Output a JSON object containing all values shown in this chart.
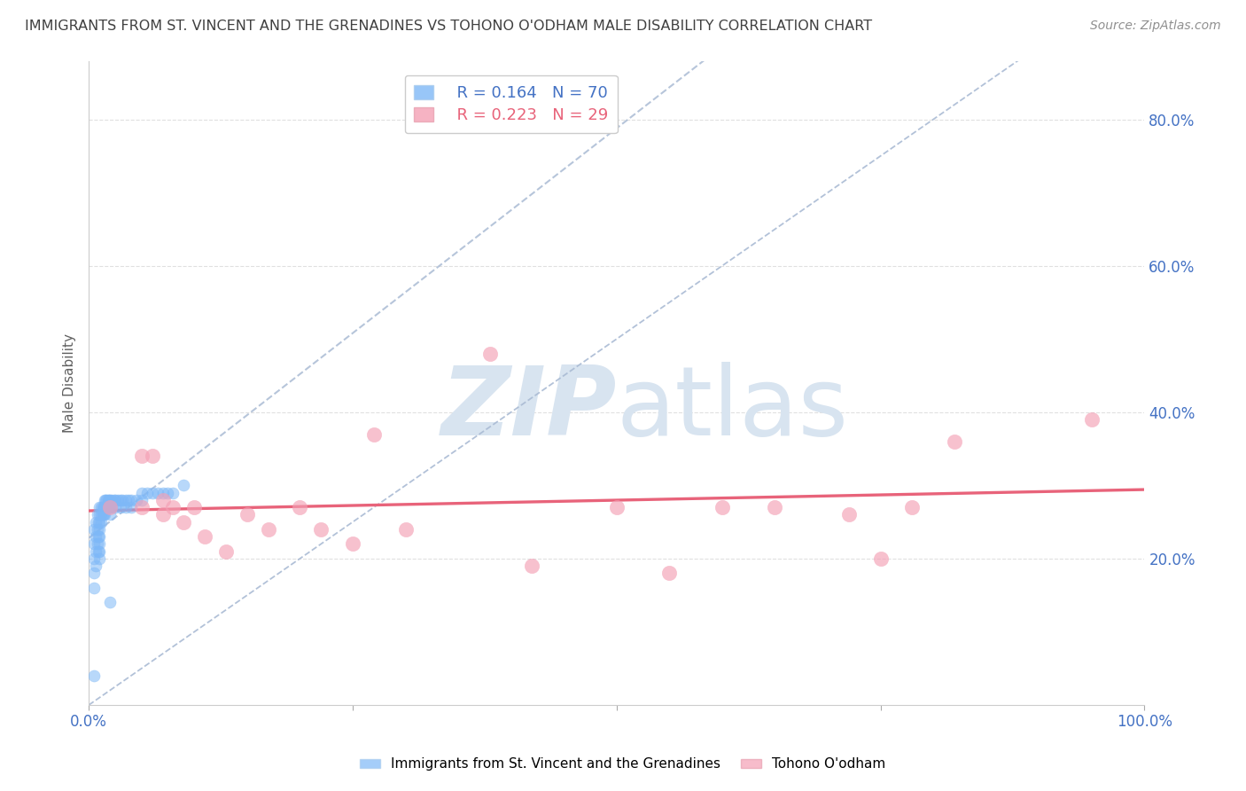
{
  "title": "IMMIGRANTS FROM ST. VINCENT AND THE GRENADINES VS TOHONO O'ODHAM MALE DISABILITY CORRELATION CHART",
  "source": "Source: ZipAtlas.com",
  "ylabel": "Male Disability",
  "legend_blue_label": "Immigrants from St. Vincent and the Grenadines",
  "legend_pink_label": "Tohono O'odham",
  "legend_blue_R": "R = 0.164",
  "legend_blue_N": "N = 70",
  "legend_pink_R": "R = 0.223",
  "legend_pink_N": "N = 29",
  "xlim": [
    0.0,
    1.0
  ],
  "ylim": [
    0.0,
    0.88
  ],
  "ytick_positions": [
    0.2,
    0.4,
    0.6,
    0.8
  ],
  "ytick_labels": [
    "20.0%",
    "40.0%",
    "60.0%",
    "80.0%"
  ],
  "blue_scatter_x": [
    0.005,
    0.005,
    0.005,
    0.005,
    0.005,
    0.007,
    0.007,
    0.007,
    0.007,
    0.008,
    0.008,
    0.008,
    0.009,
    0.009,
    0.009,
    0.01,
    0.01,
    0.01,
    0.01,
    0.01,
    0.01,
    0.01,
    0.01,
    0.012,
    0.012,
    0.012,
    0.013,
    0.013,
    0.014,
    0.014,
    0.015,
    0.015,
    0.015,
    0.016,
    0.016,
    0.017,
    0.017,
    0.018,
    0.018,
    0.019,
    0.019,
    0.02,
    0.02,
    0.02,
    0.022,
    0.022,
    0.024,
    0.025,
    0.025,
    0.028,
    0.03,
    0.03,
    0.032,
    0.035,
    0.035,
    0.038,
    0.04,
    0.04,
    0.045,
    0.05,
    0.05,
    0.055,
    0.06,
    0.065,
    0.07,
    0.075,
    0.08,
    0.09,
    0.02,
    0.005
  ],
  "blue_scatter_y": [
    0.24,
    0.22,
    0.2,
    0.18,
    0.16,
    0.25,
    0.23,
    0.21,
    0.19,
    0.26,
    0.24,
    0.22,
    0.25,
    0.23,
    0.21,
    0.27,
    0.26,
    0.25,
    0.24,
    0.23,
    0.22,
    0.21,
    0.2,
    0.27,
    0.26,
    0.25,
    0.27,
    0.26,
    0.27,
    0.26,
    0.28,
    0.27,
    0.26,
    0.28,
    0.27,
    0.28,
    0.27,
    0.28,
    0.27,
    0.28,
    0.27,
    0.28,
    0.27,
    0.26,
    0.28,
    0.27,
    0.28,
    0.28,
    0.27,
    0.28,
    0.28,
    0.27,
    0.28,
    0.28,
    0.27,
    0.28,
    0.28,
    0.27,
    0.28,
    0.29,
    0.28,
    0.29,
    0.29,
    0.29,
    0.29,
    0.29,
    0.29,
    0.3,
    0.14,
    0.04
  ],
  "pink_scatter_x": [
    0.02,
    0.05,
    0.05,
    0.06,
    0.07,
    0.07,
    0.08,
    0.09,
    0.1,
    0.11,
    0.13,
    0.15,
    0.17,
    0.2,
    0.22,
    0.25,
    0.27,
    0.3,
    0.38,
    0.42,
    0.5,
    0.55,
    0.6,
    0.65,
    0.72,
    0.75,
    0.78,
    0.82,
    0.95
  ],
  "pink_scatter_y": [
    0.27,
    0.34,
    0.27,
    0.34,
    0.28,
    0.26,
    0.27,
    0.25,
    0.27,
    0.23,
    0.21,
    0.26,
    0.24,
    0.27,
    0.24,
    0.22,
    0.37,
    0.24,
    0.48,
    0.19,
    0.27,
    0.18,
    0.27,
    0.27,
    0.26,
    0.2,
    0.27,
    0.36,
    0.39
  ],
  "blue_color": "#7EB8F7",
  "pink_color": "#F4A0B5",
  "pink_line_color": "#E8637A",
  "diag_line_color": "#AABBD4",
  "grid_color": "#E0E0E0",
  "title_color": "#404040",
  "source_color": "#909090",
  "axis_label_color": "#606060",
  "tick_color": "#4472C4",
  "watermark_color": "#D8E4F0",
  "background_color": "#FFFFFF"
}
